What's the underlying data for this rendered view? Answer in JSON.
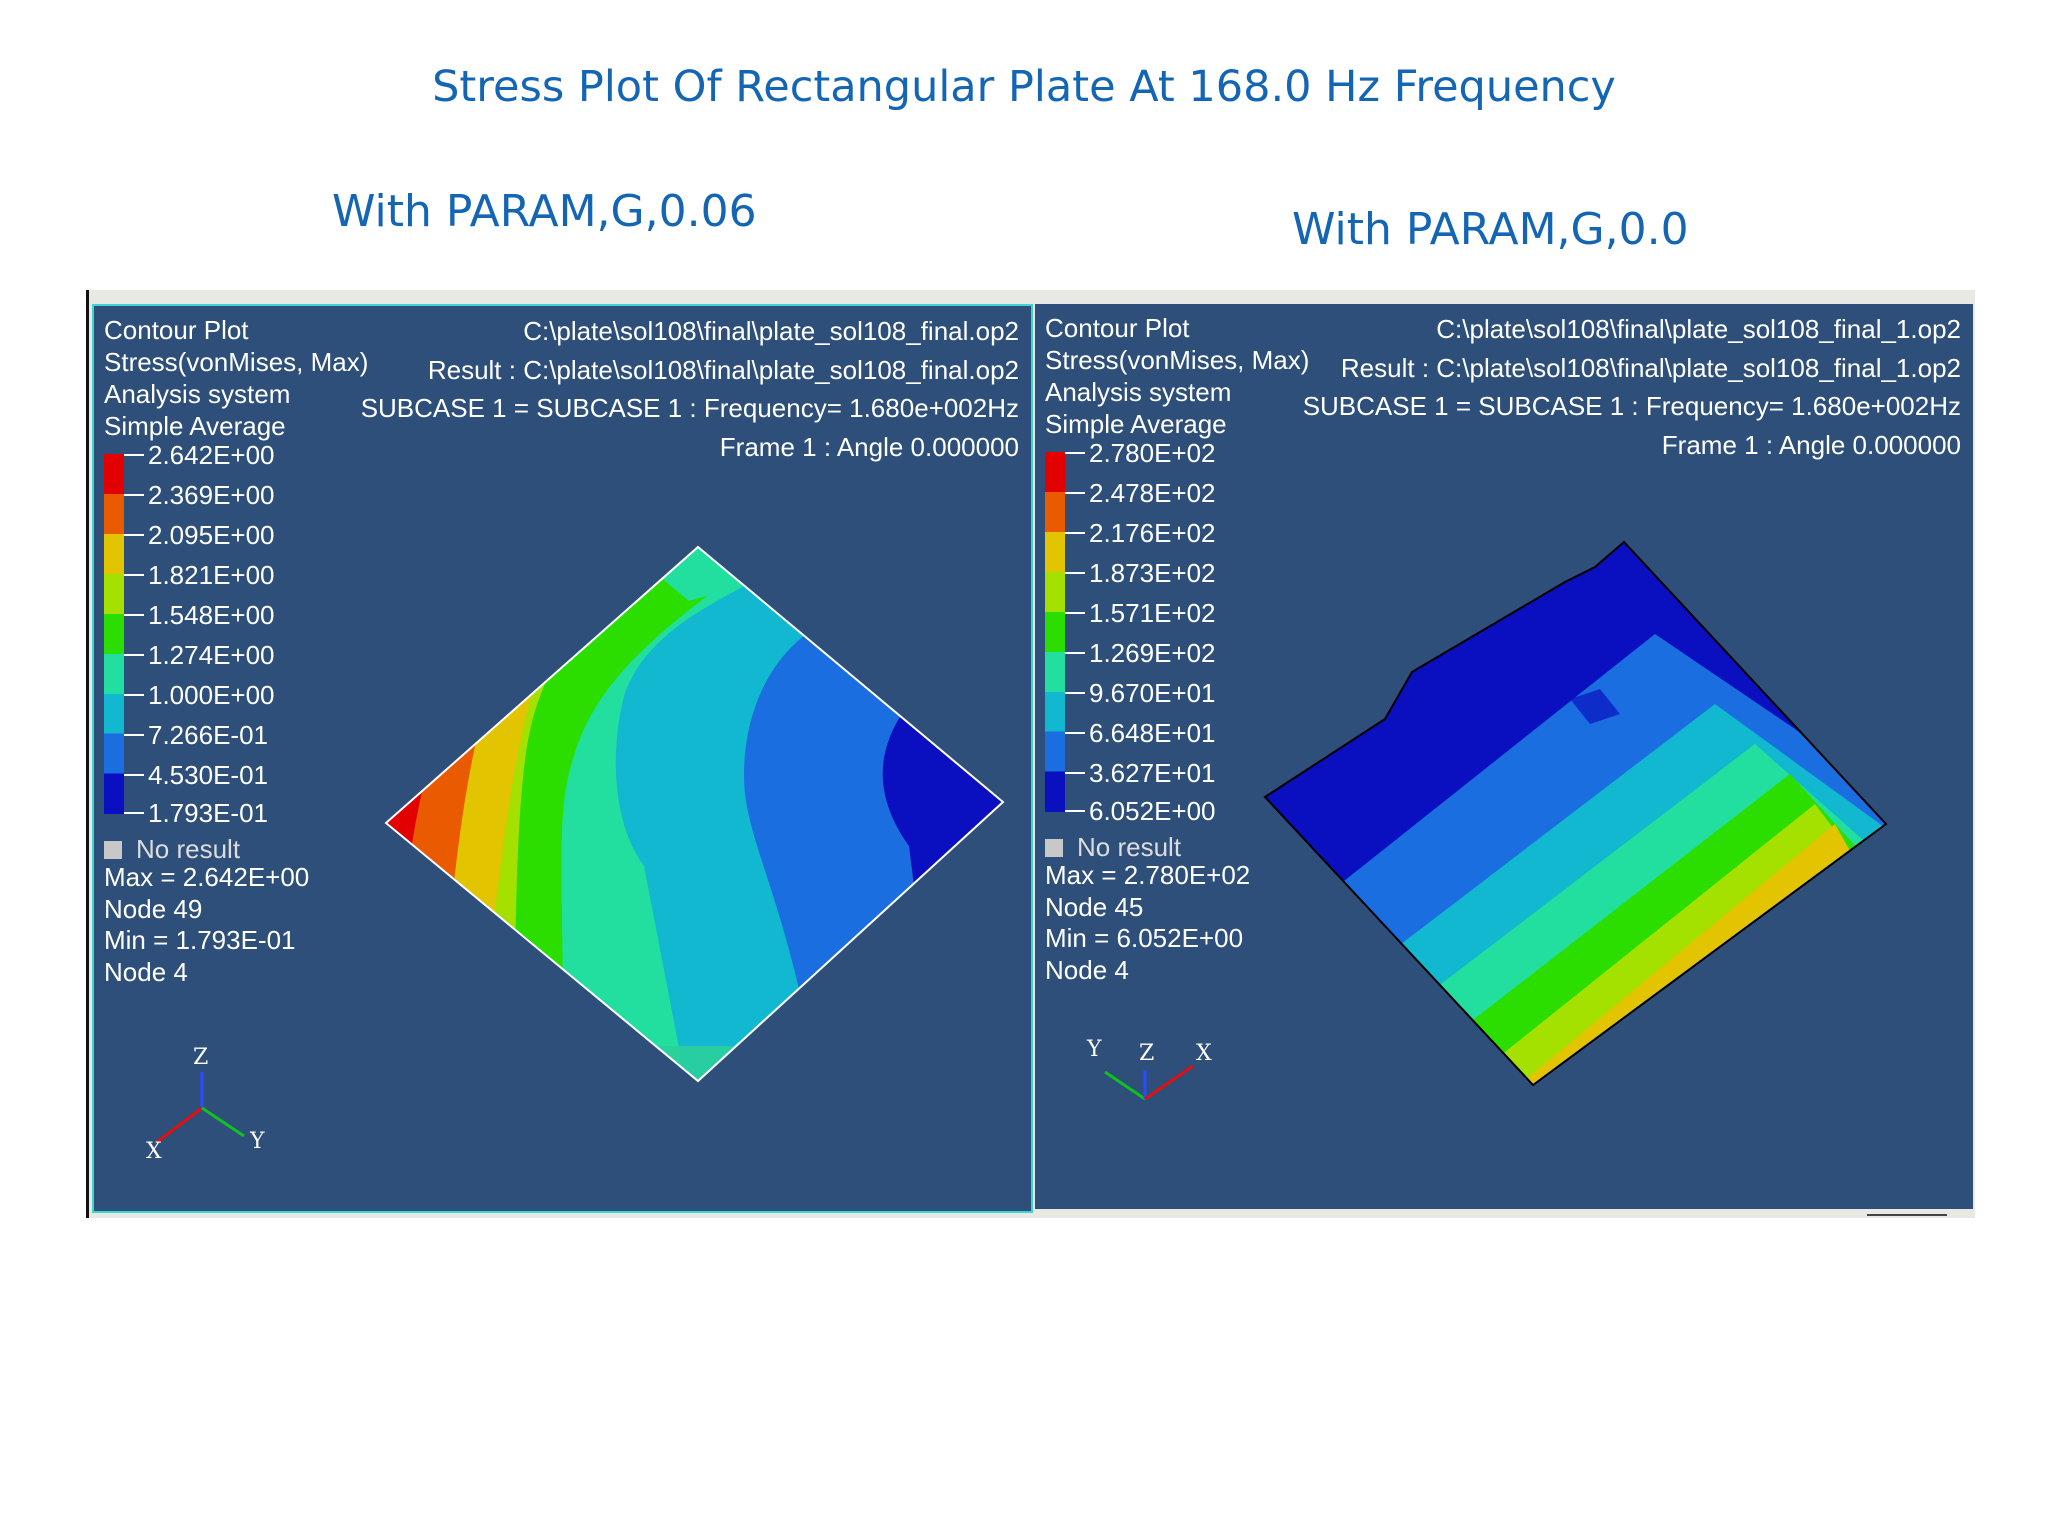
{
  "title": "Stress Plot Of Rectangular Plate At 168.0 Hz Frequency",
  "subtitles": {
    "left": "With PARAM,G,0.06",
    "right": "With PARAM,G,0.0"
  },
  "panels": {
    "left": {
      "header_left": [
        "Contour Plot",
        "Stress(vonMises, Max)",
        "Analysis system",
        "Simple Average"
      ],
      "header_right": [
        "C:\\plate\\sol108\\final\\plate_sol108_final.op2",
        "Result : C:\\plate\\sol108\\final\\plate_sol108_final.op2",
        "SUBCASE 1 = SUBCASE 1   : Frequency=  1.680e+002Hz",
        "Frame 1 : Angle 0.000000"
      ],
      "legend": [
        "2.642E+00",
        "2.369E+00",
        "2.095E+00",
        "1.821E+00",
        "1.548E+00",
        "1.274E+00",
        "1.000E+00",
        "7.266E-01",
        "4.530E-01",
        "1.793E-01"
      ],
      "no_result": "No result",
      "max": "Max = 2.642E+00",
      "max_node": "Node 49",
      "min": "Min = 1.793E-01",
      "min_node": "Node 4",
      "axes": {
        "a": "Z",
        "b": "X",
        "c": "Y"
      }
    },
    "right": {
      "header_left": [
        "Contour Plot",
        "Stress(vonMises, Max)",
        "Analysis system",
        "Simple Average"
      ],
      "header_right": [
        "C:\\plate\\sol108\\final\\plate_sol108_final_1.op2",
        "Result : C:\\plate\\sol108\\final\\plate_sol108_final_1.op2",
        "SUBCASE 1 = SUBCASE 1   : Frequency=  1.680e+002Hz",
        "Frame 1 : Angle 0.000000"
      ],
      "legend": [
        "2.780E+02",
        "2.478E+02",
        "2.176E+02",
        "1.873E+02",
        "1.571E+02",
        "1.269E+02",
        "9.670E+01",
        "6.648E+01",
        "3.627E+01",
        "6.052E+00"
      ],
      "no_result": "No result",
      "max": "Max = 2.780E+02",
      "max_node": "Node 45",
      "min": "Min = 6.052E+00",
      "min_node": "Node 4",
      "axes": {
        "a": "Y",
        "b": "Z",
        "c": "X"
      }
    }
  },
  "colors": {
    "panel_bg": "#2d4f79",
    "title": "#1466b4",
    "active_border": "#3fd3d3"
  }
}
